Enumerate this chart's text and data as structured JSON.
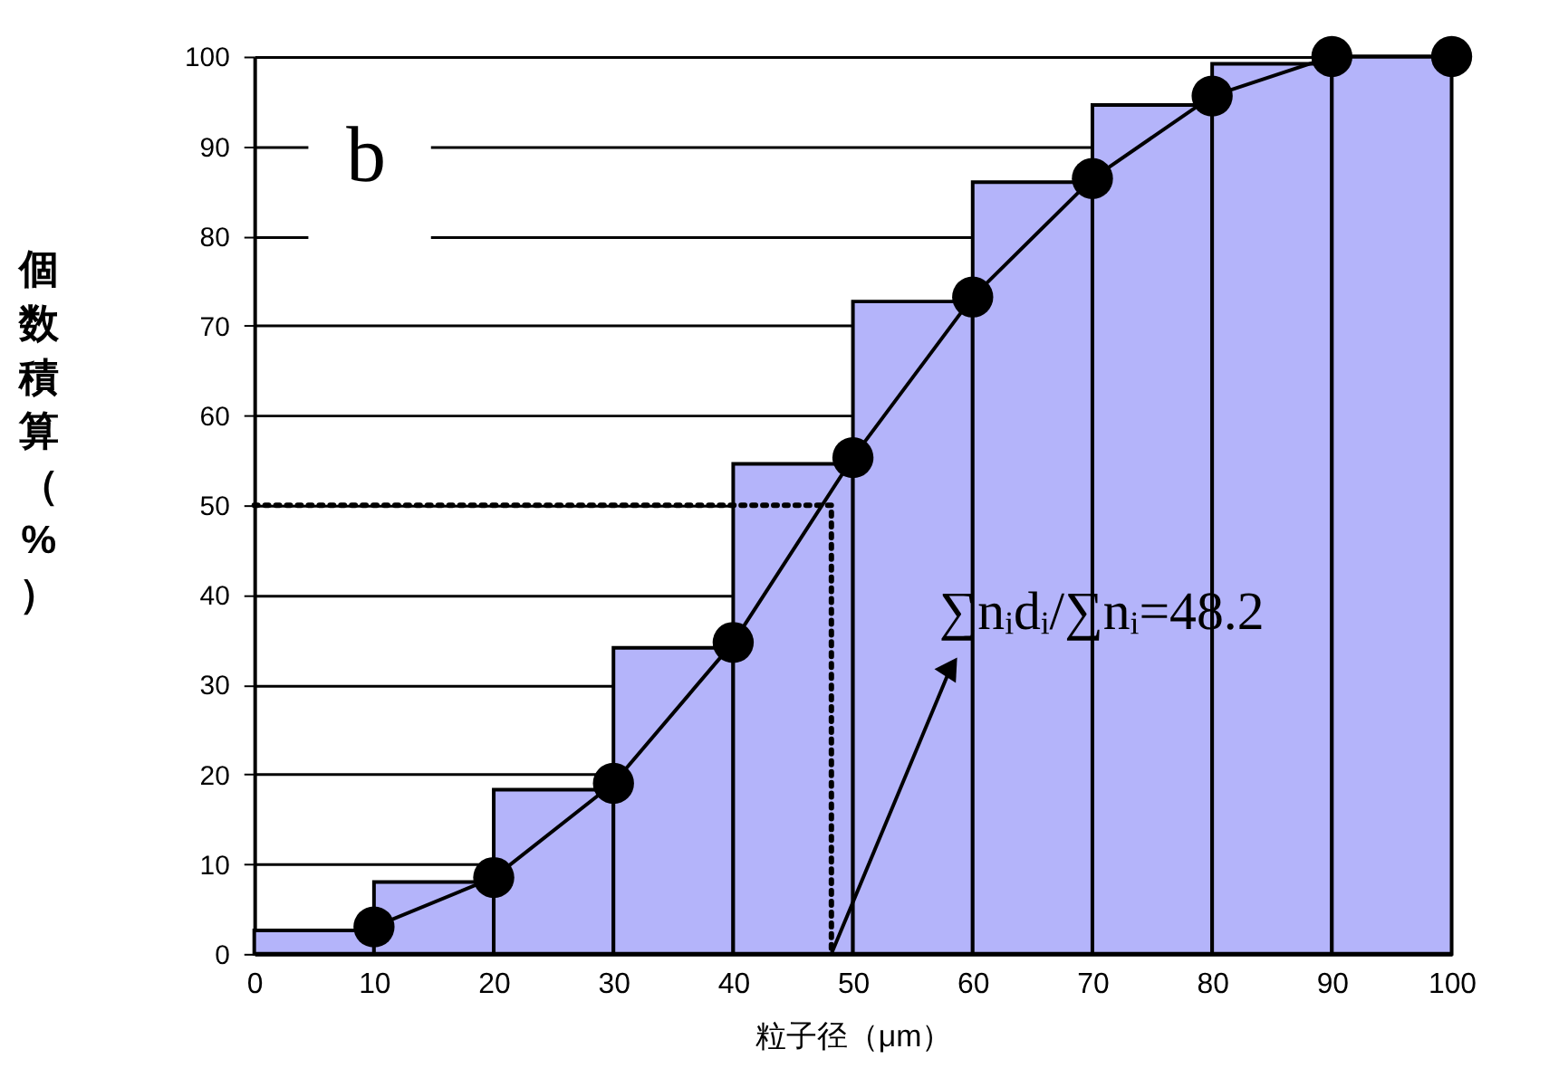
{
  "chart_data": {
    "type": "histogram",
    "title": "b",
    "xlabel": "粒子径（μm）",
    "ylabel": "個数積算（%）",
    "bins": [
      0,
      10,
      20,
      30,
      40,
      50,
      60,
      70,
      80,
      90,
      100
    ],
    "values": [
      2.6,
      8,
      18.3,
      34.1,
      54.6,
      72.7,
      86,
      94.6,
      99.2,
      100
    ],
    "color": "#b4b4fa",
    "series": [
      {
        "type": "line",
        "color": "#000000",
        "marker": "circle",
        "line_style": "solid",
        "x": [
          10,
          20,
          30,
          40,
          50,
          60,
          70,
          80,
          90,
          100
        ],
        "values": [
          3,
          8.5,
          19,
          34.7,
          55.3,
          73.2,
          86.4,
          95.6,
          100,
          100
        ]
      },
      {
        "type": "line",
        "color": "#000000",
        "marker": "none",
        "line_style": "dotted",
        "x": [
          0,
          48.2,
          48.2
        ],
        "values": [
          50,
          50,
          0
        ]
      }
    ],
    "annotations": [
      {
        "text": "∑nᵢdᵢ/∑nᵢ=48.2",
        "x": 48.2,
        "y": 0
      }
    ],
    "xlim": [
      0,
      100
    ],
    "xticks": [
      0,
      10,
      20,
      30,
      40,
      50,
      60,
      70,
      80,
      90,
      100
    ],
    "ylim": [
      0,
      100
    ],
    "yticks": [
      0,
      10,
      20,
      30,
      40,
      50,
      60,
      70,
      80,
      90,
      100
    ],
    "grid": "y"
  }
}
